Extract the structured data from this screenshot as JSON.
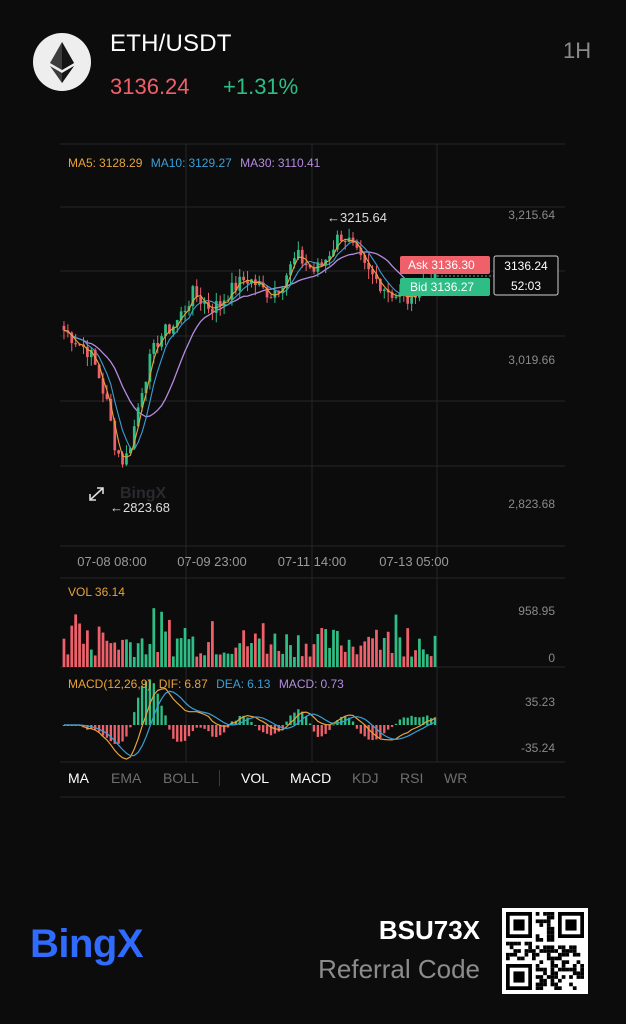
{
  "header": {
    "pair": "ETH/USDT",
    "last_price": "3136.24",
    "change_pct": "+1.31%",
    "timeframe": "1H",
    "logo_icon": "ethereum-icon"
  },
  "chart": {
    "ma_legend": {
      "ma5_label": "MA5:",
      "ma5_value": "3128.29",
      "ma10_label": "MA10:",
      "ma10_value": "3129.27",
      "ma30_label": "MA30:",
      "ma30_value": "3110.41"
    },
    "y_ticks": [
      "3,215.64",
      "3,019.66",
      "2,823.68"
    ],
    "x_ticks": [
      "07-08 08:00",
      "07-09 23:00",
      "07-11 14:00",
      "07-13 05:00"
    ],
    "high_marker": "←3215.64",
    "low_marker": "←2823.68",
    "ask_label": "Ask 3136.30",
    "bid_label": "Bid 3136.27",
    "current_price_box": "3136.24",
    "countdown": "52:03",
    "watermark": "BingX"
  },
  "volume": {
    "label": "VOL 36.14",
    "y_ticks": [
      "958.95",
      "0"
    ]
  },
  "macd": {
    "label_title": "MACD(12,26,9)",
    "dif_label": "DIF:",
    "dif_value": "6.87",
    "dea_label": "DEA:",
    "dea_value": "6.13",
    "macd_label": "MACD:",
    "macd_value": "0.73",
    "y_ticks": [
      "35.23",
      "-35.24"
    ]
  },
  "indicator_tabs": {
    "main": [
      "MA",
      "EMA",
      "BOLL"
    ],
    "sub": [
      "VOL",
      "MACD",
      "KDJ",
      "RSI",
      "WR"
    ]
  },
  "footer": {
    "brand": "BingX",
    "referral_code": "BSU73X",
    "referral_label": "Referral Code"
  },
  "colors": {
    "up": "#2ebd85",
    "down": "#f0606a",
    "ma5": "#e8a33a",
    "ma10": "#3a9fd6",
    "ma30": "#b58be0",
    "brand": "#2f6bff"
  },
  "chart_data": {
    "type": "candlestick",
    "x_ticks": [
      "07-08 08:00",
      "07-09 23:00",
      "07-11 14:00",
      "07-13 05:00"
    ],
    "y_ticks": [
      3215.64,
      3019.66,
      2823.68
    ],
    "high": 3215.64,
    "low": 2823.68,
    "last": 3136.24,
    "close_path": [
      3060,
      3050,
      3040,
      3030,
      3000,
      2960,
      2900,
      2880,
      2920,
      2980,
      3020,
      3050,
      3060,
      3070,
      3090,
      3110,
      3100,
      3090,
      3095,
      3110,
      3120,
      3130,
      3125,
      3115,
      3110,
      3120,
      3140,
      3160,
      3150,
      3140,
      3150,
      3170,
      3190,
      3180,
      3160,
      3140,
      3130,
      3120,
      3110,
      3105,
      3100,
      3120,
      3130,
      3136
    ]
  }
}
